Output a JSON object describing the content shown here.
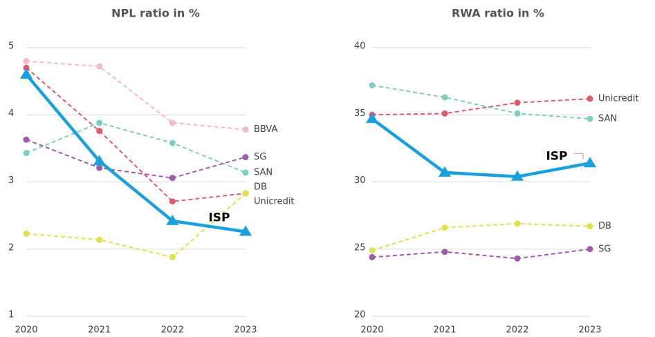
{
  "chart_data": [
    {
      "type": "line",
      "title": "NPL ratio in %",
      "categories": [
        "2020",
        "2021",
        "2022",
        "2023"
      ],
      "ylim": [
        1,
        5
      ],
      "yticks": [
        1,
        2,
        3,
        4,
        5
      ],
      "grid": true,
      "series": [
        {
          "name": "BBVA",
          "color": "#f4b8d0",
          "marker": "circle",
          "dashed": true,
          "values": [
            4.8,
            4.72,
            3.88,
            3.78
          ]
        },
        {
          "name": "Unicredit",
          "color": "#e05a6e",
          "marker": "circle",
          "dashed": true,
          "values": [
            4.7,
            3.76,
            2.71,
            2.83
          ]
        },
        {
          "name": "SAN",
          "color": "#7ecdc0",
          "marker": "circle",
          "dashed": true,
          "values": [
            3.43,
            3.88,
            3.58,
            3.14
          ]
        },
        {
          "name": "SG",
          "color": "#a05cac",
          "marker": "circle",
          "dashed": true,
          "values": [
            3.63,
            3.21,
            3.06,
            3.37
          ]
        },
        {
          "name": "DB",
          "color": "#e0e050",
          "marker": "circle",
          "dashed": true,
          "values": [
            2.23,
            2.14,
            1.88,
            2.83
          ]
        },
        {
          "name": "ISP",
          "color": "#1aa0dc",
          "marker": "triangle",
          "dashed": false,
          "values": [
            4.6,
            3.31,
            2.42,
            2.26
          ]
        }
      ]
    },
    {
      "type": "line",
      "title": "RWA ratio in %",
      "categories": [
        "2020",
        "2021",
        "2022",
        "2023"
      ],
      "ylim": [
        20,
        40
      ],
      "yticks": [
        20,
        25,
        30,
        35,
        40
      ],
      "grid": true,
      "series": [
        {
          "name": "Unicredit",
          "color": "#e05a6e",
          "marker": "circle",
          "dashed": true,
          "values": [
            35.0,
            35.1,
            35.9,
            36.2
          ]
        },
        {
          "name": "SAN",
          "color": "#7ecdc0",
          "marker": "circle",
          "dashed": true,
          "values": [
            37.2,
            36.3,
            35.1,
            34.7
          ]
        },
        {
          "name": "DB",
          "color": "#e0e050",
          "marker": "circle",
          "dashed": true,
          "values": [
            24.9,
            26.6,
            26.9,
            26.7
          ]
        },
        {
          "name": "SG",
          "color": "#a05cac",
          "marker": "circle",
          "dashed": true,
          "values": [
            24.4,
            24.8,
            24.3,
            25.0
          ]
        },
        {
          "name": "ISP",
          "color": "#1aa0dc",
          "marker": "triangle",
          "dashed": false,
          "values": [
            34.7,
            30.7,
            30.4,
            31.4
          ]
        }
      ]
    }
  ]
}
